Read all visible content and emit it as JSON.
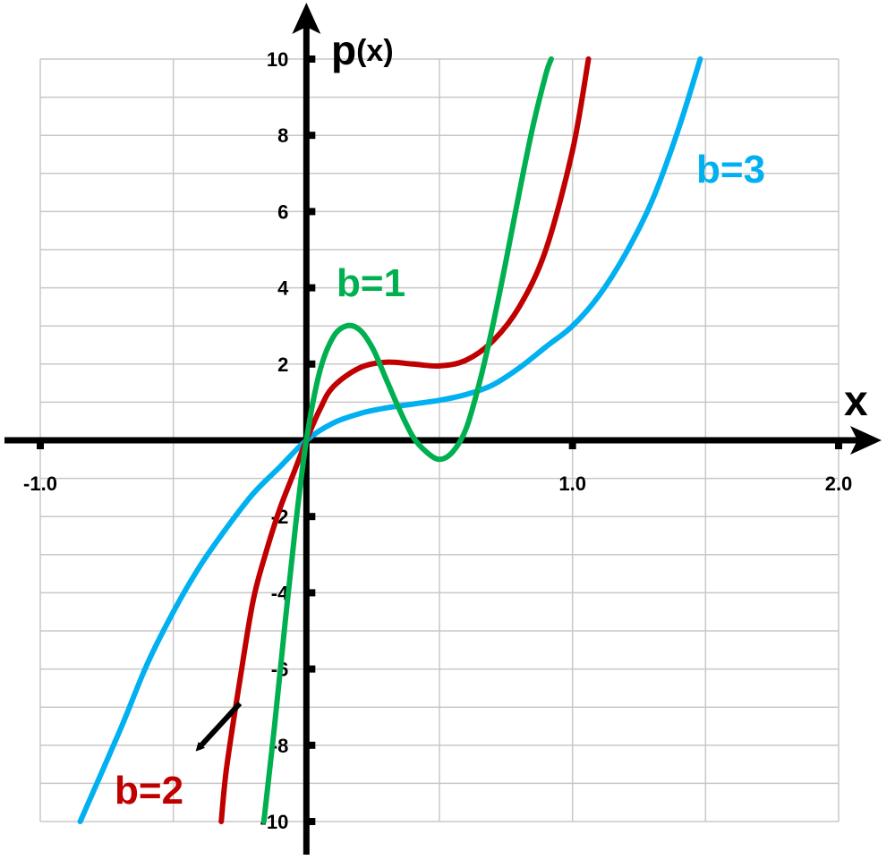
{
  "chart_data": {
    "type": "line",
    "xlabel": "x",
    "ylabel": "p",
    "ylabel_suffix": "(x)",
    "xlim": [
      -1.0,
      2.0
    ],
    "ylim": [
      -10,
      10
    ],
    "grid": true,
    "x_tick_labels": [
      "-1.0",
      "1.0",
      "2.0"
    ],
    "x_tick_values": [
      -1.0,
      1.0,
      2.0
    ],
    "y_tick_labels": [
      "10",
      "8",
      "6",
      "4",
      "2",
      "-2",
      "-4",
      "-6",
      "-8",
      "-10"
    ],
    "y_tick_values": [
      10,
      8,
      6,
      4,
      2,
      -2,
      -4,
      -6,
      -8,
      -10
    ],
    "series": [
      {
        "name": "b=3",
        "color": "#00B0F0",
        "x": [
          -0.85,
          -0.7,
          -0.6,
          -0.5,
          -0.4,
          -0.3,
          -0.2,
          -0.1,
          0.0,
          0.1,
          0.2,
          0.3,
          0.4,
          0.5,
          0.6,
          0.7,
          0.8,
          0.9,
          1.0,
          1.1,
          1.2,
          1.3,
          1.4,
          1.48
        ],
        "y": [
          -10.0,
          -7.6,
          -5.9,
          -4.5,
          -3.3,
          -2.3,
          -1.4,
          -0.7,
          0.0,
          0.45,
          0.7,
          0.85,
          0.95,
          1.05,
          1.2,
          1.45,
          1.9,
          2.45,
          3.0,
          3.8,
          4.9,
          6.3,
          8.2,
          10.0
        ],
        "label_text": "b=3"
      },
      {
        "name": "b=2",
        "color": "#C00000",
        "x": [
          -0.32,
          -0.3,
          -0.25,
          -0.2,
          -0.15,
          -0.1,
          -0.05,
          0.0,
          0.05,
          0.1,
          0.2,
          0.3,
          0.4,
          0.5,
          0.6,
          0.7,
          0.8,
          0.9,
          1.0,
          1.06
        ],
        "y": [
          -10.0,
          -8.6,
          -6.3,
          -4.2,
          -2.9,
          -1.8,
          -0.9,
          0.0,
          0.8,
          1.4,
          1.9,
          2.05,
          2.0,
          1.95,
          2.1,
          2.6,
          3.5,
          5.0,
          7.6,
          10.0
        ],
        "label_text": "b=2"
      },
      {
        "name": "b=1",
        "color": "#00B050",
        "x": [
          -0.16,
          -0.12,
          -0.08,
          -0.04,
          0.0,
          0.05,
          0.1,
          0.15,
          0.2,
          0.25,
          0.3,
          0.35,
          0.4,
          0.45,
          0.5,
          0.55,
          0.6,
          0.65,
          0.7,
          0.75,
          0.8,
          0.85,
          0.9,
          0.92
        ],
        "y": [
          -10.0,
          -7.5,
          -4.8,
          -2.2,
          0.0,
          1.8,
          2.7,
          3.0,
          2.9,
          2.4,
          1.6,
          0.8,
          0.1,
          -0.3,
          -0.5,
          -0.3,
          0.3,
          1.5,
          3.0,
          4.7,
          6.5,
          8.2,
          9.6,
          10.0
        ],
        "label_text": "b=1"
      }
    ]
  }
}
